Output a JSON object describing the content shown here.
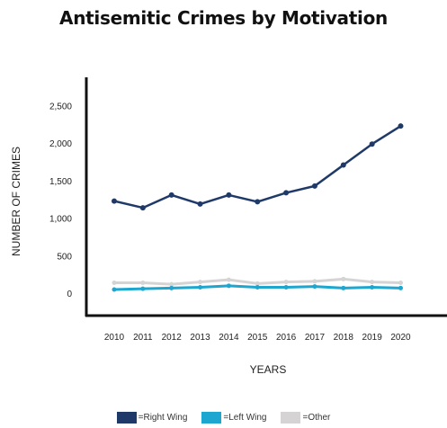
{
  "chart_data": {
    "type": "line",
    "title": "Antisemitic Crimes by Motivation",
    "xlabel": "YEARS",
    "ylabel": "NUMBER OF CRIMES",
    "categories": [
      "2010",
      "2011",
      "2012",
      "2013",
      "2014",
      "2015",
      "2016",
      "2017",
      "2018",
      "2019",
      "2020"
    ],
    "yticks": [
      "0",
      "500",
      "1,000",
      "1,500",
      "2,000",
      "2,500"
    ],
    "ylim": [
      0,
      2500
    ],
    "grid": false,
    "legend_position": "bottom",
    "series": [
      {
        "name": "=Right Wing",
        "color": "#1f3a68",
        "values": [
          1240,
          1150,
          1320,
          1200,
          1320,
          1230,
          1350,
          1440,
          1720,
          2000,
          2240
        ]
      },
      {
        "name": "=Left Wing",
        "color": "#1da6cf",
        "values": [
          60,
          70,
          80,
          90,
          110,
          90,
          90,
          100,
          80,
          90,
          80
        ]
      },
      {
        "name": "=Other",
        "color": "#d5d3d4",
        "values": [
          150,
          150,
          130,
          160,
          190,
          140,
          160,
          170,
          200,
          160,
          150
        ]
      }
    ]
  }
}
